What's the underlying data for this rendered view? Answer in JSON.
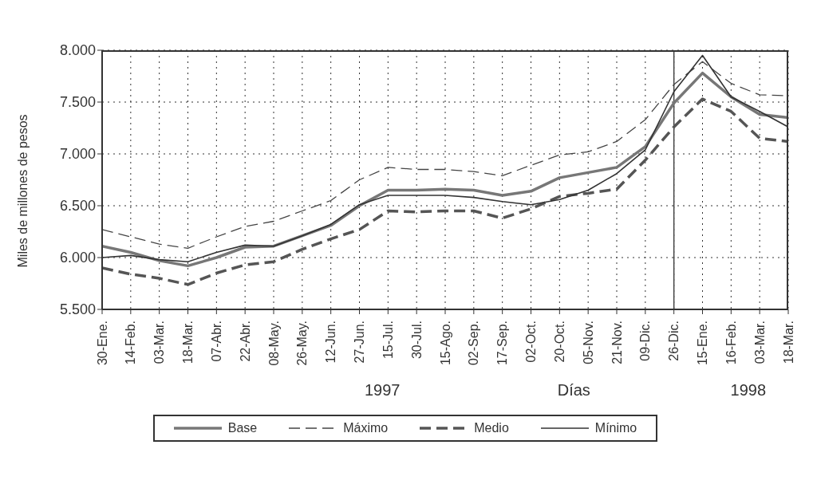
{
  "chart_data": {
    "type": "line",
    "xlabel": "Días",
    "ylabel": "Miles de millones de pesos",
    "categories": [
      "30-Ene.",
      "14-Feb.",
      "03-Mar.",
      "18-Mar.",
      "07-Abr.",
      "22-Abr.",
      "08-May.",
      "26-May.",
      "12-Jun.",
      "27-Jun.",
      "15-Jul.",
      "30-Jul.",
      "15-Ago.",
      "02-Sep.",
      "17-Sep.",
      "02-Oct.",
      "20-Oct.",
      "05-Nov.",
      "21-Nov.",
      "09-Dic.",
      "26-Dic.",
      "15-Ene.",
      "16-Feb.",
      "03-Mar.",
      "18-Mar."
    ],
    "series": [
      {
        "name": "Base",
        "color": "#777777",
        "line_style": "solid",
        "values": [
          6110,
          6050,
          5970,
          5920,
          6000,
          6100,
          6110,
          6210,
          6310,
          6500,
          6650,
          6650,
          6660,
          6650,
          6600,
          6640,
          6770,
          6820,
          6870,
          7070,
          7490,
          7780,
          7550,
          7380,
          7350
        ]
      },
      {
        "name": "Máximo",
        "color": "#444444",
        "line_style": "dashed",
        "values": [
          6270,
          6200,
          6130,
          6090,
          6200,
          6300,
          6350,
          6450,
          6550,
          6750,
          6870,
          6850,
          6850,
          6830,
          6790,
          6890,
          6990,
          7020,
          7120,
          7330,
          7670,
          7890,
          7680,
          7570,
          7560
        ]
      },
      {
        "name": "Medio",
        "color": "#555555",
        "line_style": "dashed",
        "values": [
          5900,
          5840,
          5800,
          5740,
          5850,
          5930,
          5960,
          6080,
          6180,
          6270,
          6450,
          6440,
          6450,
          6450,
          6380,
          6470,
          6590,
          6620,
          6660,
          6940,
          7260,
          7530,
          7410,
          7150,
          7120
        ]
      },
      {
        "name": "Mínimo",
        "color": "#333333",
        "line_style": "solid",
        "values": [
          6000,
          6020,
          5980,
          5960,
          6050,
          6120,
          6110,
          6210,
          6320,
          6510,
          6600,
          6600,
          6600,
          6580,
          6540,
          6510,
          6560,
          6650,
          6810,
          7040,
          7600,
          7950,
          7550,
          7410,
          7260
        ]
      }
    ],
    "ylim": [
      5500,
      8000
    ],
    "yticks": [
      {
        "value": 5500,
        "label": "5.500"
      },
      {
        "value": 6000,
        "label": "6.000"
      },
      {
        "value": 6500,
        "label": "6.500"
      },
      {
        "value": 7000,
        "label": "7.000"
      },
      {
        "value": 7500,
        "label": "7.500"
      },
      {
        "value": 8000,
        "label": "8.000"
      }
    ],
    "ref_lines": [
      {
        "axis": "x",
        "value": "26-Dic.",
        "color": "#444444",
        "line_style": "solid"
      }
    ],
    "annotations": [
      "1997",
      "1998"
    ],
    "grid": true,
    "legend": "bottom"
  }
}
